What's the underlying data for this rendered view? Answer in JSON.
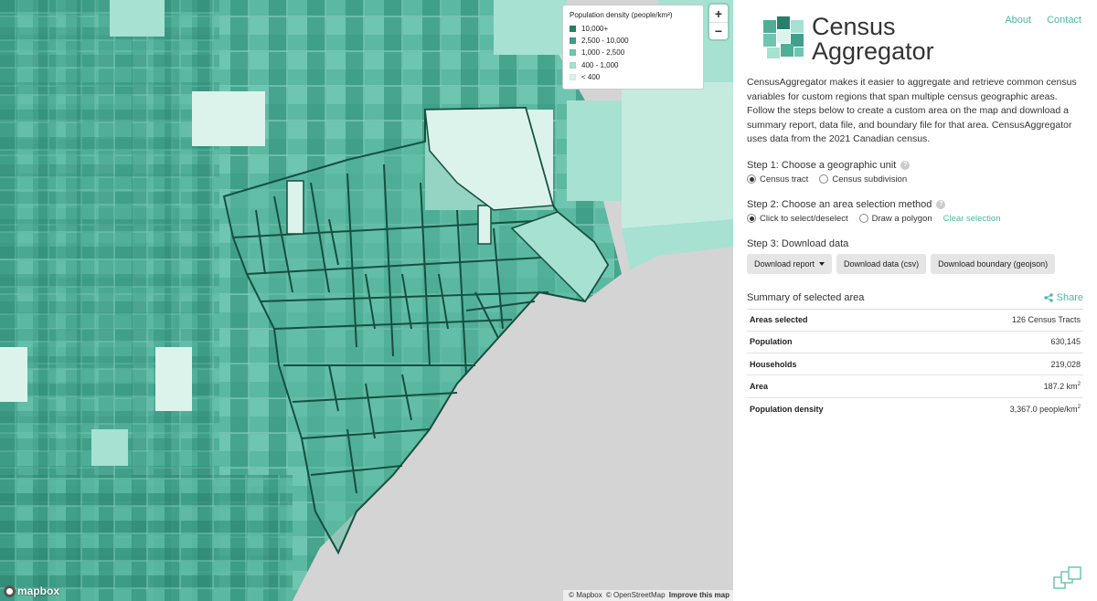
{
  "app": {
    "brand_line1": "Census",
    "brand_line2": "Aggregator",
    "nav": {
      "about": "About",
      "contact": "Contact"
    }
  },
  "map": {
    "legend": {
      "title": "Population density (people/km²)",
      "items": [
        {
          "label": "10,000+",
          "color": "#2a7f6c"
        },
        {
          "label": "2,500 - 10,000",
          "color": "#3f9f88"
        },
        {
          "label": "1,000 - 2,500",
          "color": "#6ec6b1"
        },
        {
          "label": "400 - 1,000",
          "color": "#a6e1d2"
        },
        {
          "label": "< 400",
          "color": "#dcf3ec"
        }
      ]
    },
    "zoom_in": "+",
    "zoom_out": "−",
    "logo_text": "mapbox",
    "attribution": {
      "mapbox": "© Mapbox",
      "osm": "© OpenStreetMap",
      "improve": "Improve this map"
    },
    "colors": {
      "water": "#d4d4d4",
      "selection_outline": "#15503f"
    }
  },
  "intro": "CensusAggregator makes it easier to aggregate and retrieve common census variables for custom regions that span multiple census geographic areas. Follow the steps below to create a custom area on the map and download a summary report, data file, and boundary file for that area. CensusAggregator uses data from the 2021 Canadian census.",
  "step1": {
    "title": "Step 1: Choose a geographic unit",
    "options": [
      {
        "label": "Census tract",
        "selected": true
      },
      {
        "label": "Census subdivision",
        "selected": false
      }
    ]
  },
  "step2": {
    "title": "Step 2: Choose an area selection method",
    "options": [
      {
        "label": "Click to select/deselect",
        "selected": true
      },
      {
        "label": "Draw a polygon",
        "selected": false
      }
    ],
    "clear": "Clear selection"
  },
  "step3": {
    "title": "Step 3: Download data",
    "buttons": {
      "report": "Download report",
      "csv": "Download data (csv)",
      "geojson": "Download boundary (geojson)"
    }
  },
  "summary": {
    "title": "Summary of selected area",
    "share": "Share",
    "rows": [
      {
        "key": "Areas selected",
        "value": "126 Census Tracts"
      },
      {
        "key": "Population",
        "value": "630,145"
      },
      {
        "key": "Households",
        "value": "219,028"
      },
      {
        "key": "Area",
        "value": "187.2 km",
        "sup": "2"
      },
      {
        "key": "Population density",
        "value": "3,367.0 people/km",
        "sup": "2"
      }
    ]
  }
}
